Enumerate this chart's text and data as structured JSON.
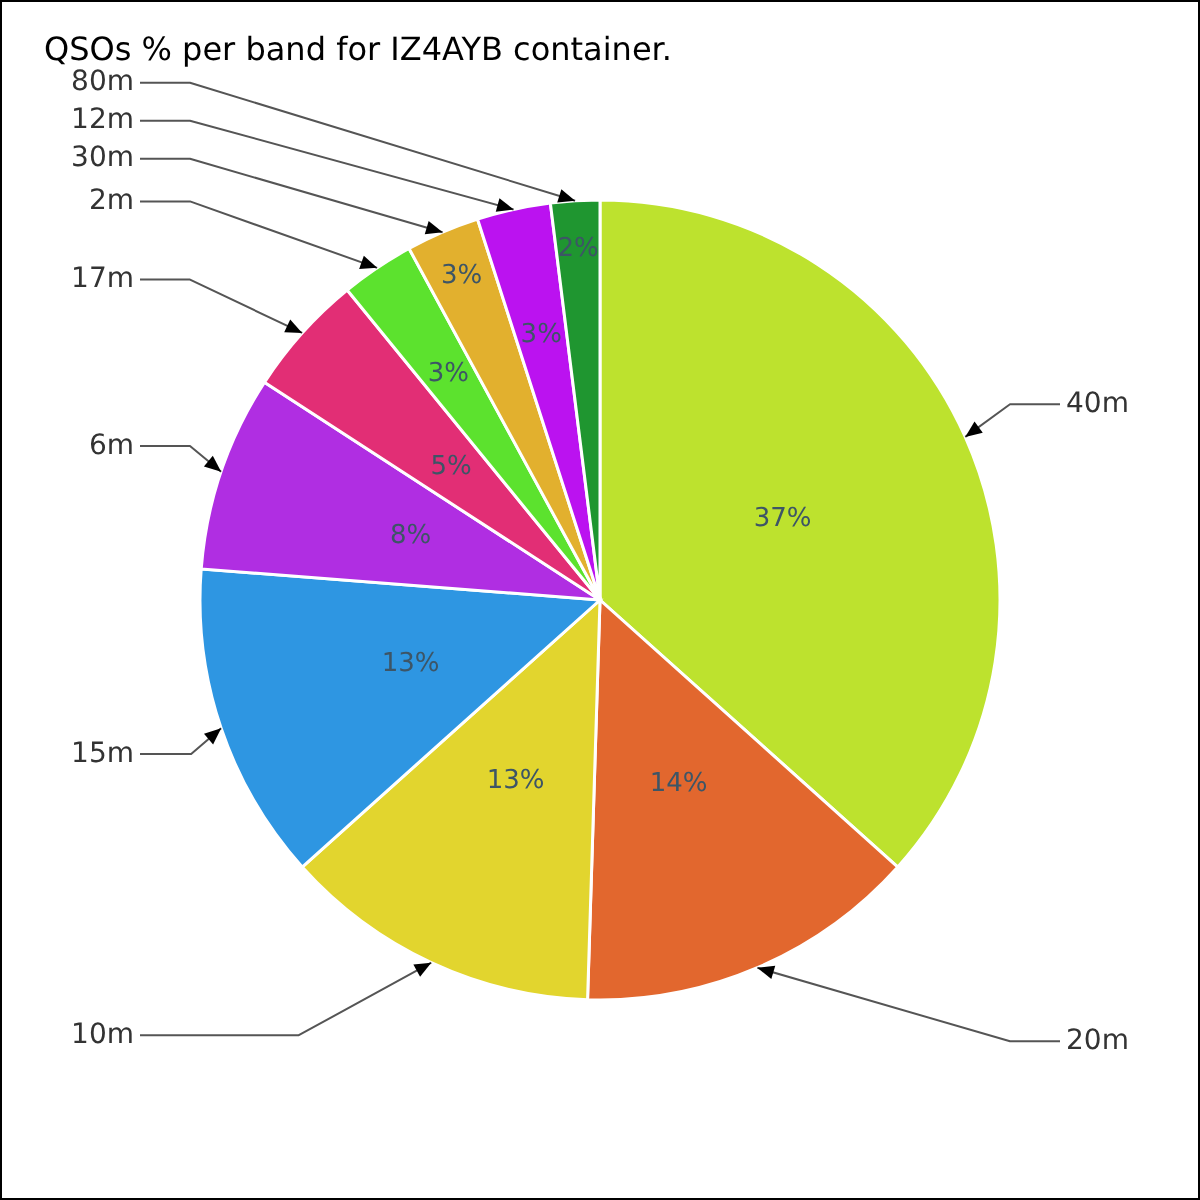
{
  "chart_data": {
    "type": "pie",
    "title": "QSOs % per band for IZ4AYB container.",
    "categories": [
      "40m",
      "20m",
      "10m",
      "15m",
      "6m",
      "17m",
      "2m",
      "30m",
      "12m",
      "80m"
    ],
    "values": [
      37,
      14,
      13,
      13,
      8,
      5,
      3,
      3,
      3,
      2
    ],
    "colors": [
      "#bde22e",
      "#e2672e",
      "#e2d52e",
      "#2e96e2",
      "#b02ee2",
      "#e22e75",
      "#5ce22e",
      "#e2b02e",
      "#bb12f0",
      "#1f9630"
    ],
    "value_labels": [
      "37%",
      "14%",
      "13%",
      "13%",
      "8%",
      "5%",
      "3%",
      "3%",
      "3%",
      "2%"
    ]
  }
}
